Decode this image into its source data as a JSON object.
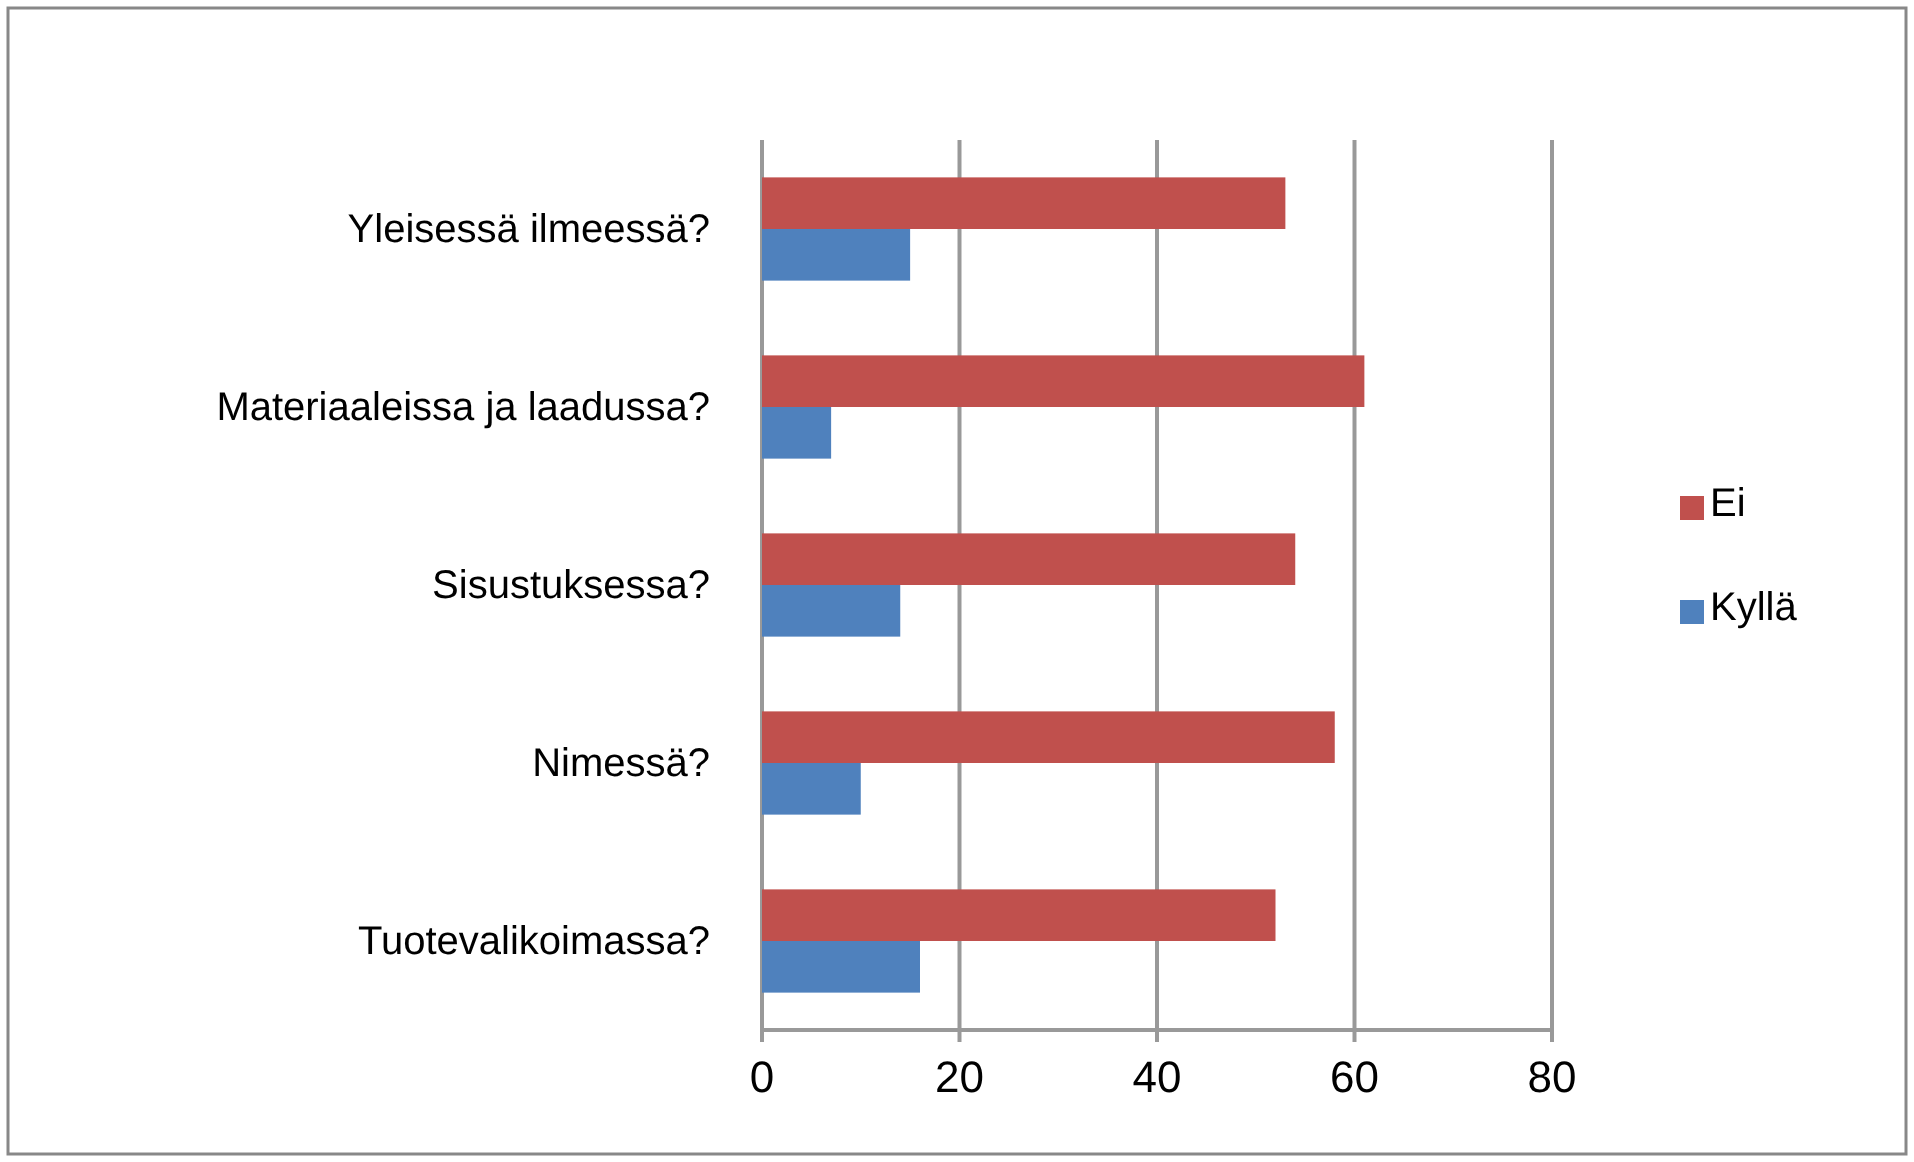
{
  "chart_data": {
    "type": "bar",
    "orientation": "horizontal",
    "categories": [
      "Yleisessä ilmeessä?",
      "Materiaaleissa ja laadussa?",
      "Sisustuksessa?",
      "Nimessä?",
      "Tuotevalikoimassa?"
    ],
    "series": [
      {
        "name": "Ei",
        "color": "#c0504d",
        "values": [
          53,
          61,
          54,
          58,
          52
        ]
      },
      {
        "name": "Kyllä",
        "color": "#4f81bd",
        "values": [
          15,
          7,
          14,
          10,
          16
        ]
      }
    ],
    "xlim": [
      0,
      80
    ],
    "xticks": [
      0,
      20,
      40,
      60,
      80
    ],
    "grid": "x",
    "legend": "right"
  }
}
